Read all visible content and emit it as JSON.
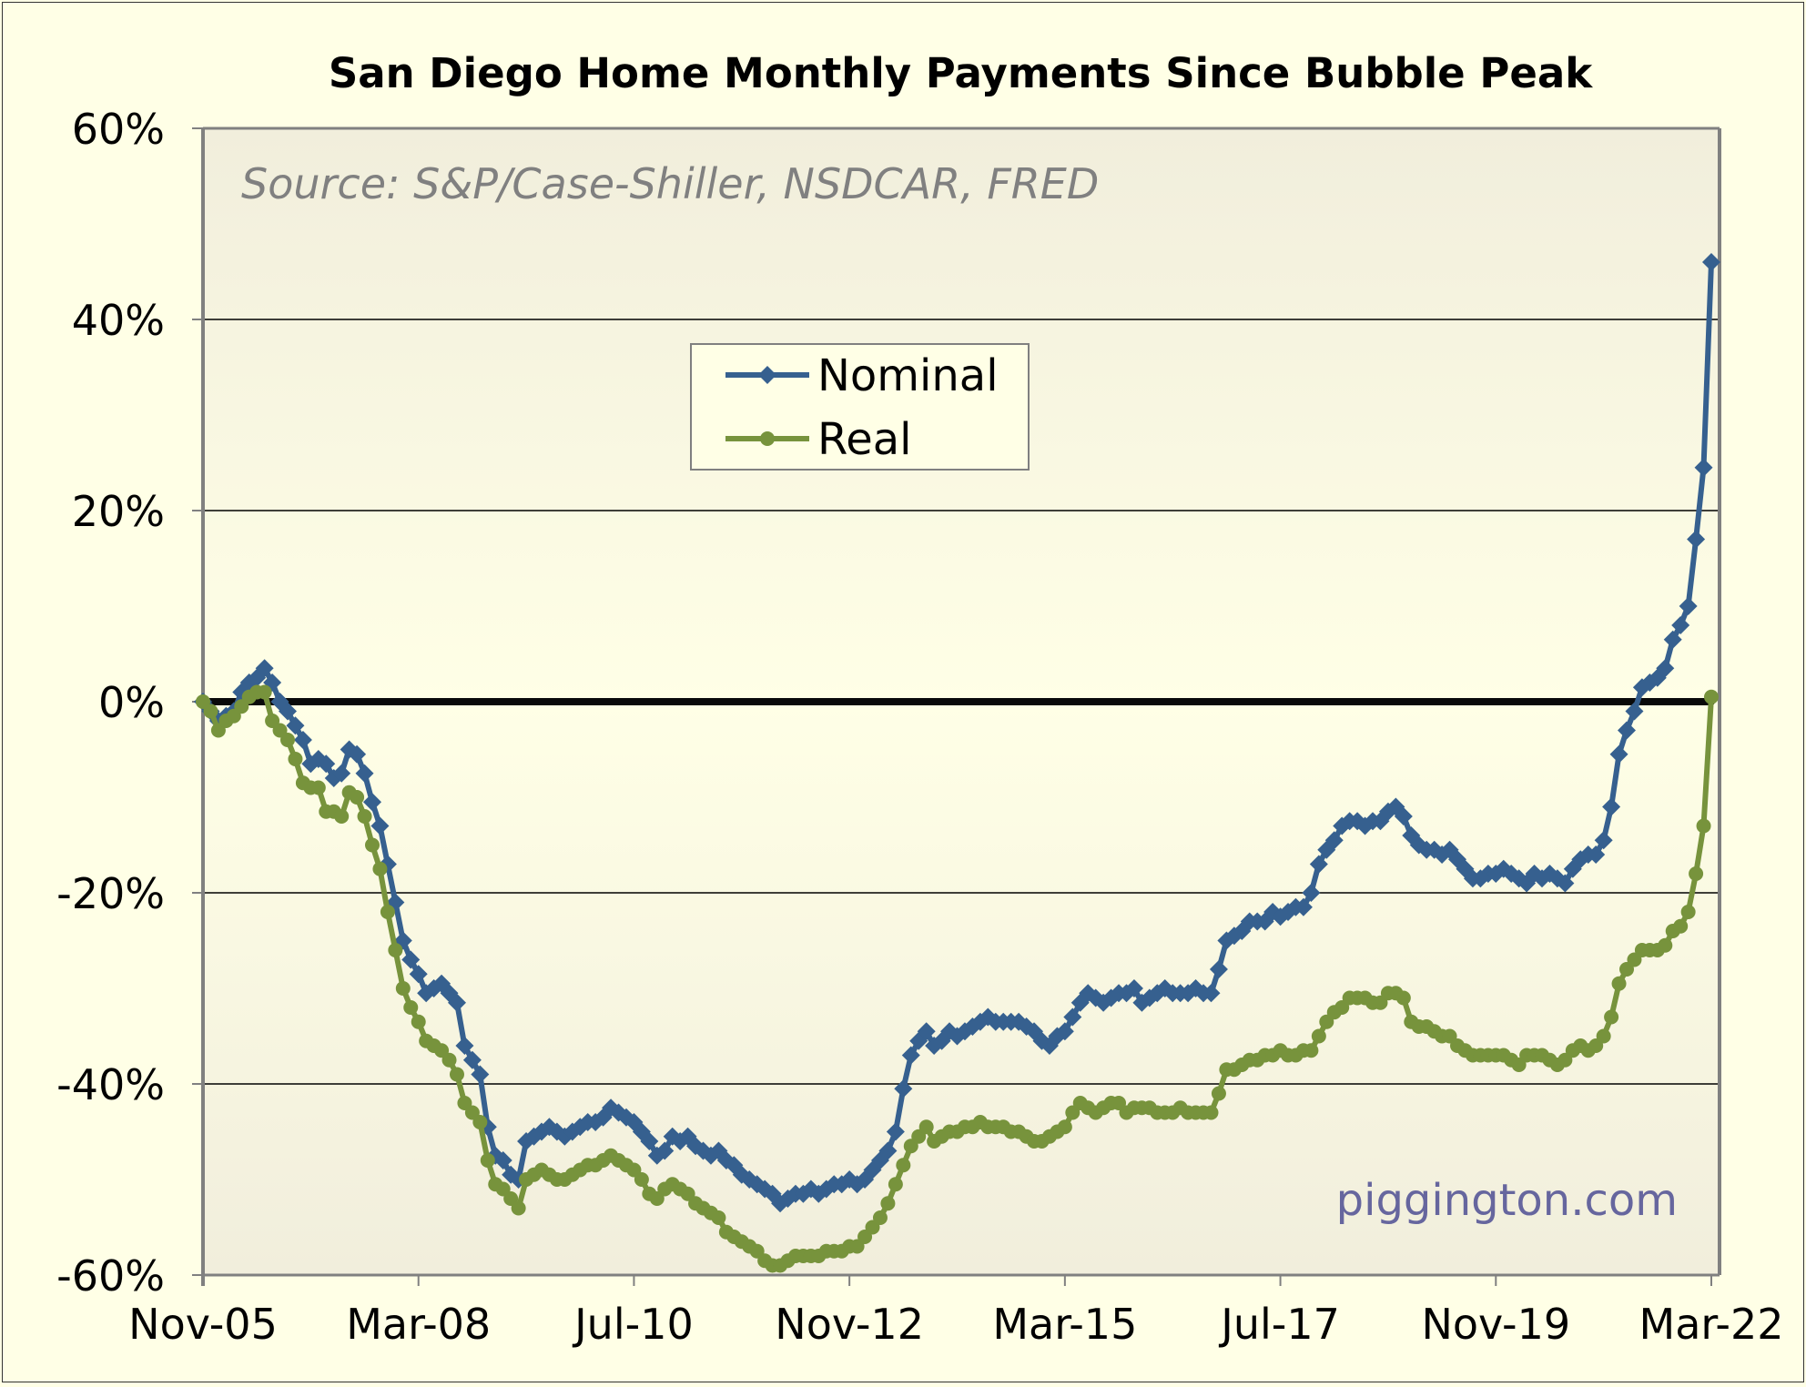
{
  "chart_data": {
    "type": "line",
    "title": "San Diego Home Monthly Payments Since Bubble Peak",
    "source_note": "Source: S&P/Case-Shiller, NSDCAR, FRED",
    "credit": "piggington.com",
    "xlabel": "",
    "ylabel": "",
    "x_start": "Nov-05",
    "x_end": "Mar-22",
    "x_frequency": "monthly",
    "x_tick_labels": [
      "Nov-05",
      "Mar-08",
      "Jul-10",
      "Nov-12",
      "Mar-15",
      "Jul-17",
      "Nov-19",
      "Mar-22"
    ],
    "x_tick_months_from_start": [
      0,
      28,
      56,
      84,
      112,
      140,
      168,
      196
    ],
    "ylim": [
      -60,
      60
    ],
    "y_ticks": [
      60,
      40,
      20,
      0,
      -20,
      -40,
      -60
    ],
    "y_tick_labels": [
      "60%",
      "40%",
      "20%",
      "0%",
      "-20%",
      "-40%",
      "-60%"
    ],
    "grid": true,
    "reference_line": 0,
    "legend": {
      "placement": "upper-center",
      "entries": [
        "Nominal",
        "Real"
      ]
    },
    "series": [
      {
        "name": "Nominal",
        "color": "#36608F",
        "marker": "diamond",
        "values": [
          0,
          -1,
          -2,
          -1.5,
          -1,
          1,
          2,
          2.5,
          3.5,
          2,
          0,
          -1,
          -2.5,
          -4,
          -6.5,
          -6,
          -6.5,
          -8,
          -7.5,
          -5,
          -5.5,
          -7.5,
          -10.5,
          -13,
          -17,
          -21,
          -25,
          -27,
          -28.5,
          -30.5,
          -30,
          -29.5,
          -30.5,
          -31.5,
          -36,
          -37.5,
          -39,
          -44.5,
          -47.5,
          -48,
          -49.5,
          -50,
          -46,
          -45.5,
          -45,
          -44.5,
          -45,
          -45.5,
          -45,
          -44.5,
          -44,
          -44,
          -43.5,
          -42.5,
          -43,
          -43.5,
          -44,
          -45,
          -46,
          -47.5,
          -47,
          -45.5,
          -46,
          -45.5,
          -46.5,
          -47,
          -47.5,
          -47,
          -48,
          -48.5,
          -49.5,
          -50,
          -50.5,
          -51,
          -51.5,
          -52.5,
          -52,
          -51.5,
          -51.5,
          -51,
          -51.5,
          -51,
          -50.5,
          -50.5,
          -50,
          -50.5,
          -50,
          -49,
          -48,
          -47,
          -45,
          -40.5,
          -37,
          -35.5,
          -34.5,
          -36,
          -35.5,
          -34.5,
          -35,
          -34.5,
          -34,
          -33.5,
          -33,
          -33.5,
          -33.5,
          -33.5,
          -33.5,
          -34,
          -34.5,
          -35.5,
          -36,
          -35,
          -34.5,
          -33,
          -31.5,
          -30.5,
          -31,
          -31.5,
          -31,
          -30.5,
          -30.5,
          -30,
          -31.5,
          -31,
          -30.5,
          -30,
          -30.5,
          -30.5,
          -30.5,
          -30,
          -30.5,
          -30.5,
          -28,
          -25,
          -24.5,
          -24,
          -23,
          -23,
          -23,
          -22,
          -22.5,
          -22,
          -21.5,
          -21.5,
          -20,
          -17,
          -15.5,
          -14.5,
          -13,
          -12.5,
          -12.5,
          -13,
          -12.5,
          -12.5,
          -11.5,
          -11,
          -12,
          -14,
          -15,
          -15.5,
          -15.5,
          -16,
          -15.5,
          -16.5,
          -17.5,
          -18.5,
          -18.5,
          -18,
          -18,
          -17.5,
          -18,
          -18.5,
          -19,
          -18,
          -18.5,
          -18,
          -18.5,
          -19,
          -17.5,
          -16.5,
          -16,
          -16,
          -14.5,
          -11,
          -5.5,
          -3,
          -1,
          1.5,
          2,
          2.5,
          3.5,
          6.5,
          8,
          10,
          17,
          24.5,
          46
        ]
      },
      {
        "name": "Real",
        "color": "#77933C",
        "marker": "circle",
        "values": [
          0,
          -1,
          -3,
          -2,
          -1.5,
          -0.5,
          0.5,
          1,
          1,
          -2,
          -3,
          -4,
          -6,
          -8.5,
          -9,
          -9,
          -11.5,
          -11.5,
          -12,
          -9.5,
          -10,
          -12,
          -15,
          -17.5,
          -22,
          -26,
          -30,
          -32,
          -33.5,
          -35.5,
          -36,
          -36.5,
          -37.5,
          -39,
          -42,
          -43,
          -44,
          -48,
          -50.5,
          -51,
          -52,
          -53,
          -50,
          -49.5,
          -49,
          -49.5,
          -50,
          -50,
          -49.5,
          -49,
          -48.5,
          -48.5,
          -48,
          -47.5,
          -48,
          -48.5,
          -49,
          -50,
          -51.5,
          -52,
          -51,
          -50.5,
          -51,
          -51.5,
          -52.5,
          -53,
          -53.5,
          -54,
          -55.5,
          -56,
          -56.5,
          -57,
          -57.5,
          -58.5,
          -59,
          -59,
          -58.5,
          -58,
          -58,
          -58,
          -58,
          -57.5,
          -57.5,
          -57.5,
          -57,
          -57,
          -56,
          -55,
          -54,
          -52.5,
          -50.5,
          -48.5,
          -46.5,
          -45.5,
          -44.5,
          -46,
          -45.5,
          -45,
          -45,
          -44.5,
          -44.5,
          -44,
          -44.5,
          -44.5,
          -44.5,
          -45,
          -45,
          -45.5,
          -46,
          -46,
          -45.5,
          -45,
          -44.5,
          -43,
          -42,
          -42.5,
          -43,
          -42.5,
          -42,
          -42,
          -43,
          -42.5,
          -42.5,
          -42.5,
          -43,
          -43,
          -43,
          -42.5,
          -43,
          -43,
          -43,
          -43,
          -41,
          -38.5,
          -38.5,
          -38,
          -37.5,
          -37.5,
          -37,
          -37,
          -36.5,
          -37,
          -37,
          -36.5,
          -36.5,
          -35,
          -33.5,
          -32.5,
          -32,
          -31,
          -31,
          -31,
          -31.5,
          -31.5,
          -30.5,
          -30.5,
          -31,
          -33.5,
          -34,
          -34,
          -34.5,
          -35,
          -35,
          -36,
          -36.5,
          -37,
          -37,
          -37,
          -37,
          -37,
          -37.5,
          -38,
          -37,
          -37,
          -37,
          -37.5,
          -38,
          -37.5,
          -36.5,
          -36,
          -36.5,
          -36,
          -35,
          -33,
          -29.5,
          -28,
          -27,
          -26,
          -26,
          -26,
          -25.5,
          -24,
          -23.5,
          -22,
          -18,
          -13,
          0.5
        ]
      }
    ]
  }
}
